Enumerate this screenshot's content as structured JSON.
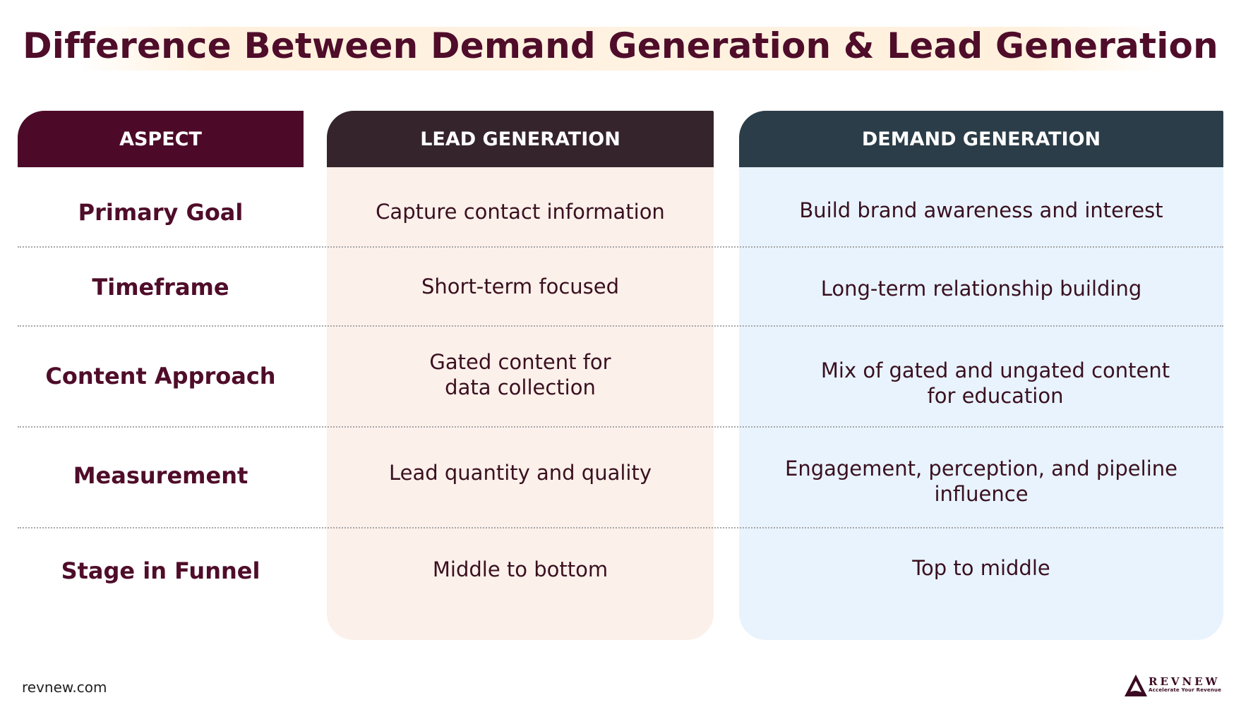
{
  "title": "Difference Between Demand Generation & Lead Generation",
  "headers": {
    "aspect": "ASPECT",
    "lead": "LEAD GENERATION",
    "demand": "DEMAND GENERATION"
  },
  "rows": [
    {
      "aspect": "Primary Goal",
      "lead": "Capture contact information",
      "demand": "Build brand awareness and interest"
    },
    {
      "aspect": "Timeframe",
      "lead": "Short-term focused",
      "demand": "Long-term relationship building"
    },
    {
      "aspect": "Content Approach",
      "lead": "Gated content for data collection",
      "demand": "Mix of gated and ungated content for education"
    },
    {
      "aspect": "Measurement",
      "lead": "Lead quantity and quality",
      "demand": "Engagement, perception, and pipeline influence"
    },
    {
      "aspect": "Stage in Funnel",
      "lead": "Middle to bottom",
      "demand": "Top to middle"
    }
  ],
  "footer": {
    "url": "revnew.com",
    "brand": "REVNEW",
    "tagline": "Accelerate Your Revenue"
  },
  "colors": {
    "brand": "#4f0d2a",
    "lead_header": "#35242c",
    "demand_header": "#2b3d48",
    "lead_bg": "#fbf0ea",
    "demand_bg": "#e8f3fd"
  }
}
